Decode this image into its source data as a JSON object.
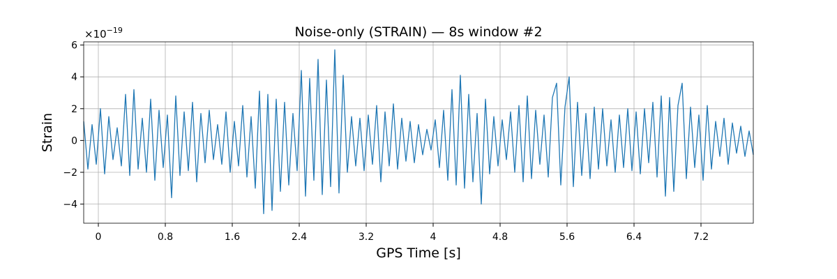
{
  "chart_data": {
    "type": "line",
    "title": "Noise-only (STRAIN) — 8s window #2",
    "x_label": "GPS Time [s]",
    "y_label": "Strain",
    "y_multiplier": {
      "base": "×10",
      "exponent": "−19"
    },
    "xlim": [
      -0.175,
      7.825
    ],
    "xticks": [
      0,
      0.8,
      1.6,
      2.4,
      3.2,
      4,
      4.8,
      5.6,
      6.4,
      7.2
    ],
    "ylim": [
      -5.2,
      6.2
    ],
    "yticks": [
      {
        "value": -4,
        "label": "−4"
      },
      {
        "value": -2,
        "label": "−2"
      },
      0,
      2,
      4,
      6
    ],
    "grid": true,
    "x": [
      -0.175,
      -0.125,
      -0.075,
      -0.025,
      0.025,
      0.075,
      0.125,
      0.175,
      0.225,
      0.275,
      0.325,
      0.375,
      0.425,
      0.475,
      0.525,
      0.575,
      0.625,
      0.675,
      0.725,
      0.775,
      0.825,
      0.875,
      0.925,
      0.975,
      1.025,
      1.075,
      1.125,
      1.175,
      1.225,
      1.275,
      1.325,
      1.375,
      1.425,
      1.475,
      1.525,
      1.575,
      1.625,
      1.675,
      1.725,
      1.775,
      1.825,
      1.875,
      1.925,
      1.975,
      2.025,
      2.075,
      2.125,
      2.175,
      2.225,
      2.275,
      2.325,
      2.375,
      2.425,
      2.475,
      2.525,
      2.575,
      2.625,
      2.675,
      2.725,
      2.775,
      2.825,
      2.875,
      2.925,
      2.975,
      3.025,
      3.075,
      3.125,
      3.175,
      3.225,
      3.275,
      3.325,
      3.375,
      3.425,
      3.475,
      3.525,
      3.575,
      3.625,
      3.675,
      3.725,
      3.775,
      3.825,
      3.875,
      3.925,
      3.975,
      4.025,
      4.075,
      4.125,
      4.175,
      4.225,
      4.275,
      4.325,
      4.375,
      4.425,
      4.475,
      4.525,
      4.575,
      4.625,
      4.675,
      4.725,
      4.775,
      4.825,
      4.875,
      4.925,
      4.975,
      5.025,
      5.075,
      5.125,
      5.175,
      5.225,
      5.275,
      5.325,
      5.375,
      5.425,
      5.475,
      5.525,
      5.575,
      5.625,
      5.675,
      5.725,
      5.775,
      5.825,
      5.875,
      5.925,
      5.975,
      6.025,
      6.075,
      6.125,
      6.175,
      6.225,
      6.275,
      6.325,
      6.375,
      6.425,
      6.475,
      6.525,
      6.575,
      6.625,
      6.675,
      6.725,
      6.775,
      6.825,
      6.875,
      6.925,
      6.975,
      7.025,
      7.075,
      7.125,
      7.175,
      7.225,
      7.275,
      7.325,
      7.375,
      7.425,
      7.475,
      7.525,
      7.575,
      7.625,
      7.675,
      7.725,
      7.775,
      7.825
    ],
    "series": [
      {
        "name": "Strain",
        "color": "#1f77b4",
        "values": [
          1.2,
          -1.8,
          1.0,
          -1.5,
          2.0,
          -2.1,
          1.5,
          -1.2,
          0.8,
          -1.6,
          2.9,
          -2.2,
          3.2,
          -1.8,
          1.4,
          -2.0,
          2.6,
          -2.5,
          1.9,
          -1.7,
          1.6,
          -3.6,
          2.8,
          -2.2,
          1.8,
          -1.9,
          2.4,
          -2.6,
          1.7,
          -1.4,
          1.9,
          -1.2,
          1.0,
          -1.5,
          1.8,
          -2.0,
          1.2,
          -1.6,
          2.2,
          -2.3,
          1.5,
          -3.0,
          3.1,
          -4.6,
          2.9,
          -4.4,
          2.6,
          -3.2,
          2.4,
          -2.8,
          1.7,
          -1.9,
          4.4,
          -3.5,
          3.9,
          -2.5,
          5.1,
          -3.4,
          3.8,
          -2.9,
          5.7,
          -3.3,
          4.1,
          -2.0,
          1.5,
          -1.6,
          1.4,
          -1.9,
          1.6,
          -1.5,
          2.2,
          -2.6,
          1.8,
          -1.6,
          2.3,
          -1.8,
          1.4,
          -1.3,
          1.2,
          -1.4,
          1.0,
          -0.9,
          0.7,
          -0.6,
          1.3,
          -1.7,
          1.9,
          -2.5,
          3.2,
          -2.8,
          4.1,
          -3.0,
          2.9,
          -2.6,
          1.7,
          -4.0,
          2.6,
          -2.1,
          1.5,
          -1.6,
          1.3,
          -1.2,
          1.8,
          -2.0,
          2.2,
          -2.6,
          2.8,
          -2.4,
          1.9,
          -1.5,
          1.6,
          -2.3,
          2.7,
          3.6,
          -2.8,
          2.1,
          4.0,
          -2.9,
          2.4,
          -2.2,
          1.7,
          -2.4,
          2.1,
          -1.8,
          2.0,
          -1.6,
          1.3,
          -2.0,
          1.6,
          -1.7,
          2.0,
          -1.9,
          1.8,
          -2.1,
          2.0,
          -1.4,
          2.4,
          -2.3,
          2.8,
          -3.5,
          2.7,
          -3.2,
          2.2,
          3.6,
          -2.4,
          2.1,
          -1.7,
          1.6,
          -2.5,
          2.2,
          -1.8,
          1.2,
          -1.0,
          1.4,
          -1.5,
          1.1,
          -0.8,
          0.9,
          -1.0,
          0.6,
          -0.9
        ]
      }
    ]
  }
}
